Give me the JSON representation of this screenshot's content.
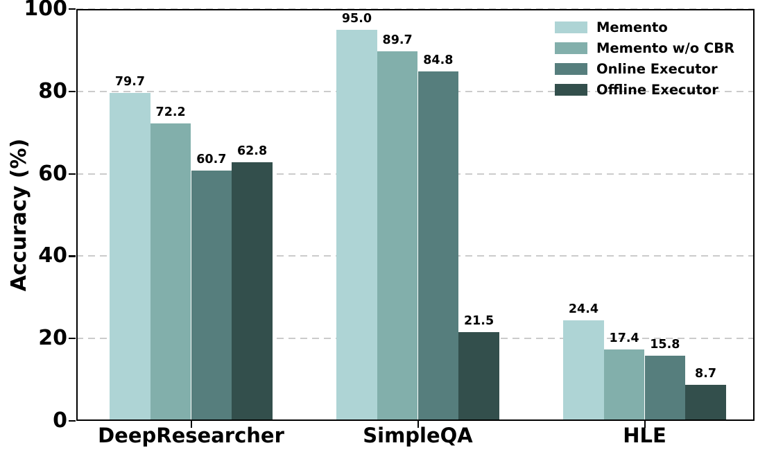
{
  "chart_data": {
    "type": "bar",
    "title": "",
    "xlabel": "",
    "ylabel": "Accuracy (%)",
    "ylim": [
      0,
      100
    ],
    "y_ticks": [
      0,
      20,
      40,
      60,
      80,
      100
    ],
    "grid": "horizontal dashed gray lines at each y tick",
    "legend_position": "upper-right, no frame",
    "frame": "full box frame with black spines",
    "categories": [
      "DeepResearcher",
      "SimpleQA",
      "HLE"
    ],
    "series": [
      {
        "name": "Memento",
        "color": "#AED4D5",
        "values": [
          79.7,
          95.0,
          24.4
        ]
      },
      {
        "name": "Memento w/o CBR",
        "color": "#82AFAB",
        "values": [
          72.2,
          89.7,
          17.4
        ]
      },
      {
        "name": "Online Executor",
        "color": "#567E7D",
        "values": [
          60.7,
          84.8,
          15.8
        ]
      },
      {
        "name": "Offline Executor",
        "color": "#334F4C",
        "values": [
          62.8,
          21.5,
          8.7
        ]
      }
    ],
    "bar_value_labels": [
      [
        "79.7",
        "72.2",
        "60.7",
        "62.8"
      ],
      [
        "95.0",
        "89.7",
        "84.8",
        "21.5"
      ],
      [
        "24.4",
        "17.4",
        "15.8",
        "8.7"
      ]
    ]
  }
}
